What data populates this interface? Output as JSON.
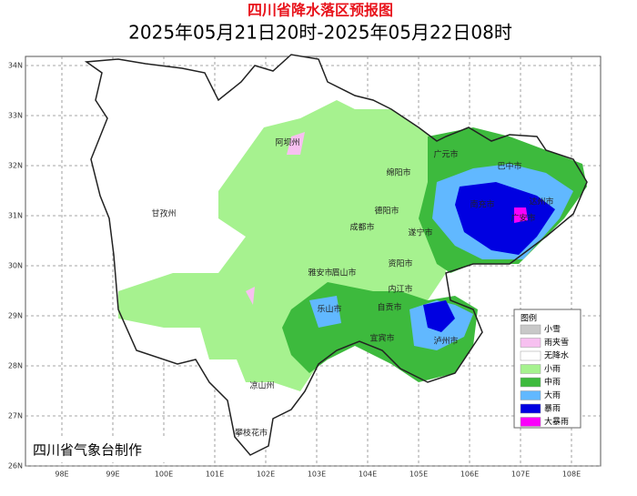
{
  "header": {
    "title": "四川省降水落区预报图",
    "subtitle": "2025年05月21日20时-2025年05月22日08时"
  },
  "lat_ticks": [
    {
      "value": 34,
      "label": "34N"
    },
    {
      "value": 33,
      "label": "33N"
    },
    {
      "value": 32,
      "label": "32N"
    },
    {
      "value": 31,
      "label": "31N"
    },
    {
      "value": 30,
      "label": "30N"
    },
    {
      "value": 29,
      "label": "29N"
    },
    {
      "value": 28,
      "label": "28N"
    },
    {
      "value": 27,
      "label": "27N"
    },
    {
      "value": 26,
      "label": "26N"
    }
  ],
  "lon_ticks": [
    {
      "value": 98,
      "label": "98E"
    },
    {
      "value": 99,
      "label": "99E"
    },
    {
      "value": 100,
      "label": "100E"
    },
    {
      "value": 101,
      "label": "101E"
    },
    {
      "value": 102,
      "label": "102E"
    },
    {
      "value": 103,
      "label": "103E"
    },
    {
      "value": 104,
      "label": "104E"
    },
    {
      "value": 105,
      "label": "105E"
    },
    {
      "value": 106,
      "label": "106E"
    },
    {
      "value": 107,
      "label": "107E"
    },
    {
      "value": 108,
      "label": "108E"
    }
  ],
  "cities": [
    "阿坝州",
    "甘孜州",
    "广元市",
    "巴中市",
    "达州市",
    "绵阳市",
    "德阳市",
    "南充市",
    "广安市",
    "遂宁市",
    "成都市",
    "资阳市",
    "雅安市",
    "眉山市",
    "内江市",
    "乐山市",
    "自贡市",
    "宜宾市",
    "泸州市",
    "凉山州",
    "攀枝花市"
  ],
  "legend": {
    "title": "图例",
    "items": [
      {
        "label": "小雪",
        "color": "#c8c8c8"
      },
      {
        "label": "雨夹雪",
        "color": "#f7c0f0"
      },
      {
        "label": "无降水",
        "color": "#ffffff"
      },
      {
        "label": "小雨",
        "color": "#a6f28f"
      },
      {
        "label": "中雨",
        "color": "#3dba3d"
      },
      {
        "label": "大雨",
        "color": "#61b8ff"
      },
      {
        "label": "暴雨",
        "color": "#0000e1"
      },
      {
        "label": "大暴雨",
        "color": "#fa00fa"
      }
    ]
  },
  "footer": "四川省气象台制作"
}
